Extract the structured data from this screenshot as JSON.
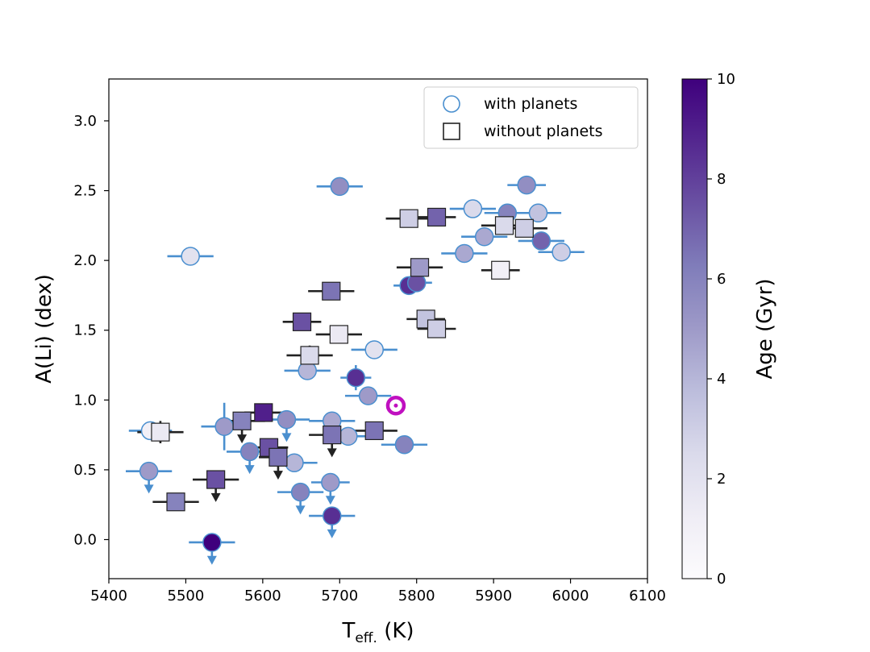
{
  "chart_data": {
    "type": "scatter",
    "xlabel_main": "T",
    "xlabel_sub": "eff.",
    "xlabel_unit": "(K)",
    "ylabel": "A(Li) (dex)",
    "xlim": [
      5400,
      6100
    ],
    "ylim": [
      -0.28,
      3.3
    ],
    "xticks": [
      5400,
      5500,
      5600,
      5700,
      5800,
      5900,
      6000,
      6100
    ],
    "yticks": [
      0.0,
      0.5,
      1.0,
      1.5,
      2.0,
      2.5,
      3.0
    ],
    "ytick_labels": [
      "0.0",
      "0.5",
      "1.0",
      "1.5",
      "2.0",
      "2.5",
      "3.0"
    ],
    "colorbar": {
      "label": "Age (Gyr)",
      "range": [
        0,
        10
      ],
      "ticks": [
        0,
        2,
        4,
        6,
        8,
        10
      ],
      "colors": [
        "#fcfbfd",
        "#efedf5",
        "#dadaeb",
        "#bcbddc",
        "#9e9ac8",
        "#807dba",
        "#6a51a3",
        "#54278f",
        "#3f007d"
      ]
    },
    "legend": [
      {
        "label": "with planets",
        "marker": "circle"
      },
      {
        "label": "without planets",
        "marker": "square"
      }
    ],
    "highlight": {
      "x": 5773,
      "y": 0.96,
      "color": "#c010c0"
    },
    "error_colors": {
      "with_planets": "#4a8fcf",
      "without_planets": "#222222"
    },
    "series": [
      {
        "name": "with planets",
        "points": [
          {
            "x": 5506,
            "y": 2.03,
            "age": 2.0,
            "xerr": 30
          },
          {
            "x": 5700,
            "y": 2.53,
            "age": 5.5,
            "xerr": 30
          },
          {
            "x": 5873,
            "y": 2.37,
            "age": 2.5,
            "xerr": 30
          },
          {
            "x": 5918,
            "y": 2.34,
            "age": 6.0,
            "xerr": 30
          },
          {
            "x": 5943,
            "y": 2.54,
            "age": 5.5,
            "xerr": 25
          },
          {
            "x": 5958,
            "y": 2.34,
            "age": 3.5,
            "xerr": 30
          },
          {
            "x": 5888,
            "y": 2.17,
            "age": 4.5,
            "xerr": 30
          },
          {
            "x": 5862,
            "y": 2.05,
            "age": 4.5,
            "xerr": 30
          },
          {
            "x": 5962,
            "y": 2.14,
            "age": 7.0,
            "xerr": 30
          },
          {
            "x": 5988,
            "y": 2.06,
            "age": 3.0,
            "xerr": 30
          },
          {
            "x": 5790,
            "y": 1.82,
            "age": 8.5,
            "xerr": 20
          },
          {
            "x": 5800,
            "y": 1.84,
            "age": 7.5,
            "xerr": 20
          },
          {
            "x": 5745,
            "y": 1.36,
            "age": 2.0,
            "xerr": 30
          },
          {
            "x": 5658,
            "y": 1.21,
            "age": 4.0,
            "xerr": 30
          },
          {
            "x": 5721,
            "y": 1.16,
            "age": 8.5,
            "xerr": 20,
            "yerr": 0.09
          },
          {
            "x": 5737,
            "y": 1.03,
            "age": 5.0,
            "xerr": 30
          },
          {
            "x": 5454,
            "y": 0.78,
            "age": 1.0,
            "xerr": 28
          },
          {
            "x": 5550,
            "y": 0.81,
            "age": 5.0,
            "xerr": 30,
            "yerr": 0.17
          },
          {
            "x": 5631,
            "y": 0.86,
            "age": 5.5,
            "xerr": 30,
            "upper": true
          },
          {
            "x": 5690,
            "y": 0.85,
            "age": 4.5,
            "xerr": 30
          },
          {
            "x": 5711,
            "y": 0.74,
            "age": 4.0,
            "xerr": 30
          },
          {
            "x": 5583,
            "y": 0.63,
            "age": 6.0,
            "xerr": 30,
            "upper": true
          },
          {
            "x": 5641,
            "y": 0.55,
            "age": 4.0,
            "xerr": 30
          },
          {
            "x": 5784,
            "y": 0.68,
            "age": 6.0,
            "xerr": 30
          },
          {
            "x": 5452,
            "y": 0.49,
            "age": 5.0,
            "xerr": 30,
            "upper": true
          },
          {
            "x": 5649,
            "y": 0.34,
            "age": 6.0,
            "xerr": 30,
            "upper": true
          },
          {
            "x": 5688,
            "y": 0.41,
            "age": 5.0,
            "xerr": 25,
            "upper": true
          },
          {
            "x": 5690,
            "y": 0.17,
            "age": 8.5,
            "xerr": 30,
            "upper": true
          },
          {
            "x": 5534,
            "y": -0.02,
            "age": 10.0,
            "xerr": 30,
            "upper": true
          }
        ]
      },
      {
        "name": "without planets",
        "points": [
          {
            "x": 5790,
            "y": 2.3,
            "age": 3.0,
            "xerr": 30
          },
          {
            "x": 5826,
            "y": 2.31,
            "age": 7.0,
            "xerr": 25
          },
          {
            "x": 5914,
            "y": 2.25,
            "age": 2.5,
            "xerr": 30
          },
          {
            "x": 5940,
            "y": 2.23,
            "age": 3.0,
            "xerr": 30
          },
          {
            "x": 5804,
            "y": 1.95,
            "age": 5.0,
            "xerr": 30
          },
          {
            "x": 5909,
            "y": 1.93,
            "age": 1.0,
            "xerr": 25
          },
          {
            "x": 5689,
            "y": 1.78,
            "age": 6.5,
            "xerr": 30
          },
          {
            "x": 5651,
            "y": 1.56,
            "age": 7.5,
            "xerr": 25
          },
          {
            "x": 5699,
            "y": 1.47,
            "age": 1.5,
            "xerr": 30
          },
          {
            "x": 5812,
            "y": 1.58,
            "age": 3.5,
            "xerr": 25
          },
          {
            "x": 5826,
            "y": 1.51,
            "age": 3.0,
            "xerr": 25
          },
          {
            "x": 5661,
            "y": 1.32,
            "age": 2.5,
            "xerr": 30,
            "yerr": 0.07
          },
          {
            "x": 5467,
            "y": 0.77,
            "age": 1.5,
            "xerr": 30,
            "yerr": 0.08
          },
          {
            "x": 5573,
            "y": 0.85,
            "age": 6.0,
            "xerr": 30,
            "upper": true
          },
          {
            "x": 5601,
            "y": 0.91,
            "age": 9.0,
            "xerr": 25
          },
          {
            "x": 5608,
            "y": 0.66,
            "age": 7.5,
            "xerr": 25
          },
          {
            "x": 5620,
            "y": 0.59,
            "age": 6.5,
            "xerr": 25,
            "upper": true
          },
          {
            "x": 5690,
            "y": 0.75,
            "age": 6.5,
            "xerr": 30,
            "upper": true
          },
          {
            "x": 5745,
            "y": 0.78,
            "age": 6.5,
            "xerr": 30
          },
          {
            "x": 5539,
            "y": 0.43,
            "age": 7.5,
            "xerr": 30,
            "upper": true
          },
          {
            "x": 5487,
            "y": 0.27,
            "age": 6.0,
            "xerr": 30,
            "yerr": 0.06
          }
        ]
      }
    ]
  }
}
